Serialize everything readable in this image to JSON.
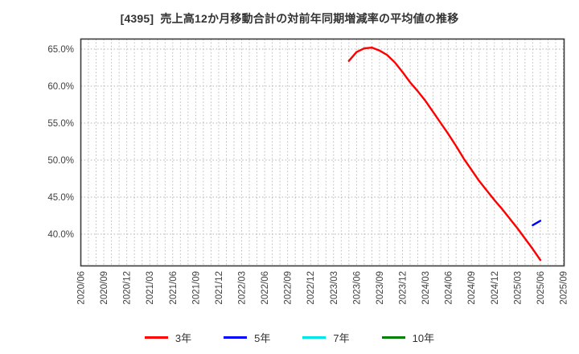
{
  "chart_data": {
    "type": "line",
    "title": "[4395]  売上高12か月移動合計の対前年同期増減率の平均値の推移",
    "title_color": "#333333",
    "xlabel": "",
    "ylabel": "",
    "ylim": [
      35.7,
      66.4
    ],
    "grid": true,
    "legend_position": "bottom",
    "background_color": "#ffffff",
    "grid_color": "#b3b3b3",
    "axis_border_color": "#3c3c3c",
    "tick_label_color": "#404040",
    "y_ticks": [
      {
        "value": 65,
        "label": "65.0%"
      },
      {
        "value": 60,
        "label": "60.0%"
      },
      {
        "value": 55,
        "label": "55.0%"
      },
      {
        "value": 50,
        "label": "50.0%"
      },
      {
        "value": 45,
        "label": "45.0%"
      },
      {
        "value": 40,
        "label": "40.0%"
      }
    ],
    "x_axis": {
      "unit": "month",
      "start": "2020/06",
      "end": "2025/09",
      "total_months": 64,
      "months_per_labeled_tick": 3,
      "tick_labels": [
        "2020/06",
        "2020/09",
        "2020/12",
        "2021/03",
        "2021/06",
        "2021/09",
        "2021/12",
        "2022/03",
        "2022/06",
        "2022/09",
        "2022/12",
        "2023/03",
        "2023/06",
        "2023/09",
        "2023/12",
        "2024/03",
        "2024/06",
        "2024/09",
        "2024/12",
        "2025/03",
        "2025/06",
        "2025/09"
      ]
    },
    "series": [
      {
        "name": "3年",
        "color": "#ff0000",
        "start_month": "2023/05",
        "start_month_index": 35,
        "values": [
          63.4,
          64.6,
          65.1,
          65.2,
          64.8,
          64.2,
          63.2,
          61.9,
          60.5,
          59.3,
          58.0,
          56.5,
          55.0,
          53.5,
          51.9,
          50.2,
          48.7,
          47.2,
          45.9,
          44.6,
          43.4,
          42.1,
          40.8,
          39.4,
          38.0,
          36.5
        ]
      },
      {
        "name": "5年",
        "color": "#0000ff",
        "start_month": "2025/05",
        "start_month_index": 59,
        "values": [
          41.2,
          41.8
        ]
      },
      {
        "name": "7年",
        "color": "#00e5e5",
        "start_month": null,
        "start_month_index": null,
        "values": []
      },
      {
        "name": "10年",
        "color": "#008000",
        "start_month": null,
        "start_month_index": null,
        "values": []
      }
    ]
  }
}
